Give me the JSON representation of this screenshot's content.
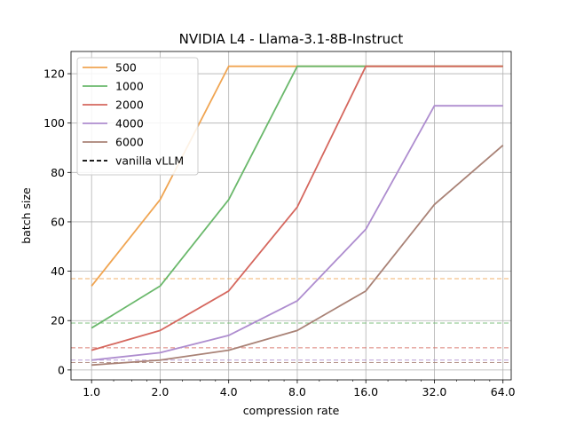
{
  "chart_data": {
    "type": "line",
    "title": "NVIDIA L4 - Llama-3.1-8B-Instruct",
    "xlabel": "compression rate",
    "ylabel": "batch size",
    "x_scale": "log2",
    "x": [
      1,
      2,
      4,
      8,
      16,
      32,
      64
    ],
    "x_tick_labels": [
      "1.0",
      "2.0",
      "4.0",
      "8.0",
      "16.0",
      "32.0",
      "64.0"
    ],
    "y_ticks": [
      0,
      20,
      40,
      60,
      80,
      100,
      120
    ],
    "ylim": [
      -4,
      129
    ],
    "grid": true,
    "legend_placement": "top-left",
    "series": [
      {
        "name": "500",
        "color": "#f0a552",
        "values": [
          34,
          69,
          123,
          123,
          123,
          123,
          123
        ],
        "vanilla": 37
      },
      {
        "name": "1000",
        "color": "#6ab86b",
        "values": [
          17,
          34,
          69,
          123,
          123,
          123,
          123
        ],
        "vanilla": 19
      },
      {
        "name": "2000",
        "color": "#d5675e",
        "values": [
          8,
          16,
          32,
          66,
          123,
          123,
          123
        ],
        "vanilla": 9
      },
      {
        "name": "4000",
        "color": "#ae8dcf",
        "values": [
          4,
          7,
          14,
          28,
          57,
          107,
          107
        ],
        "vanilla": 4
      },
      {
        "name": "6000",
        "color": "#a98276",
        "values": [
          2,
          4,
          8,
          16,
          32,
          67,
          91
        ],
        "vanilla": 3
      }
    ],
    "vanilla_label": "vanilla vLLM",
    "vanilla_color": "#000000"
  }
}
